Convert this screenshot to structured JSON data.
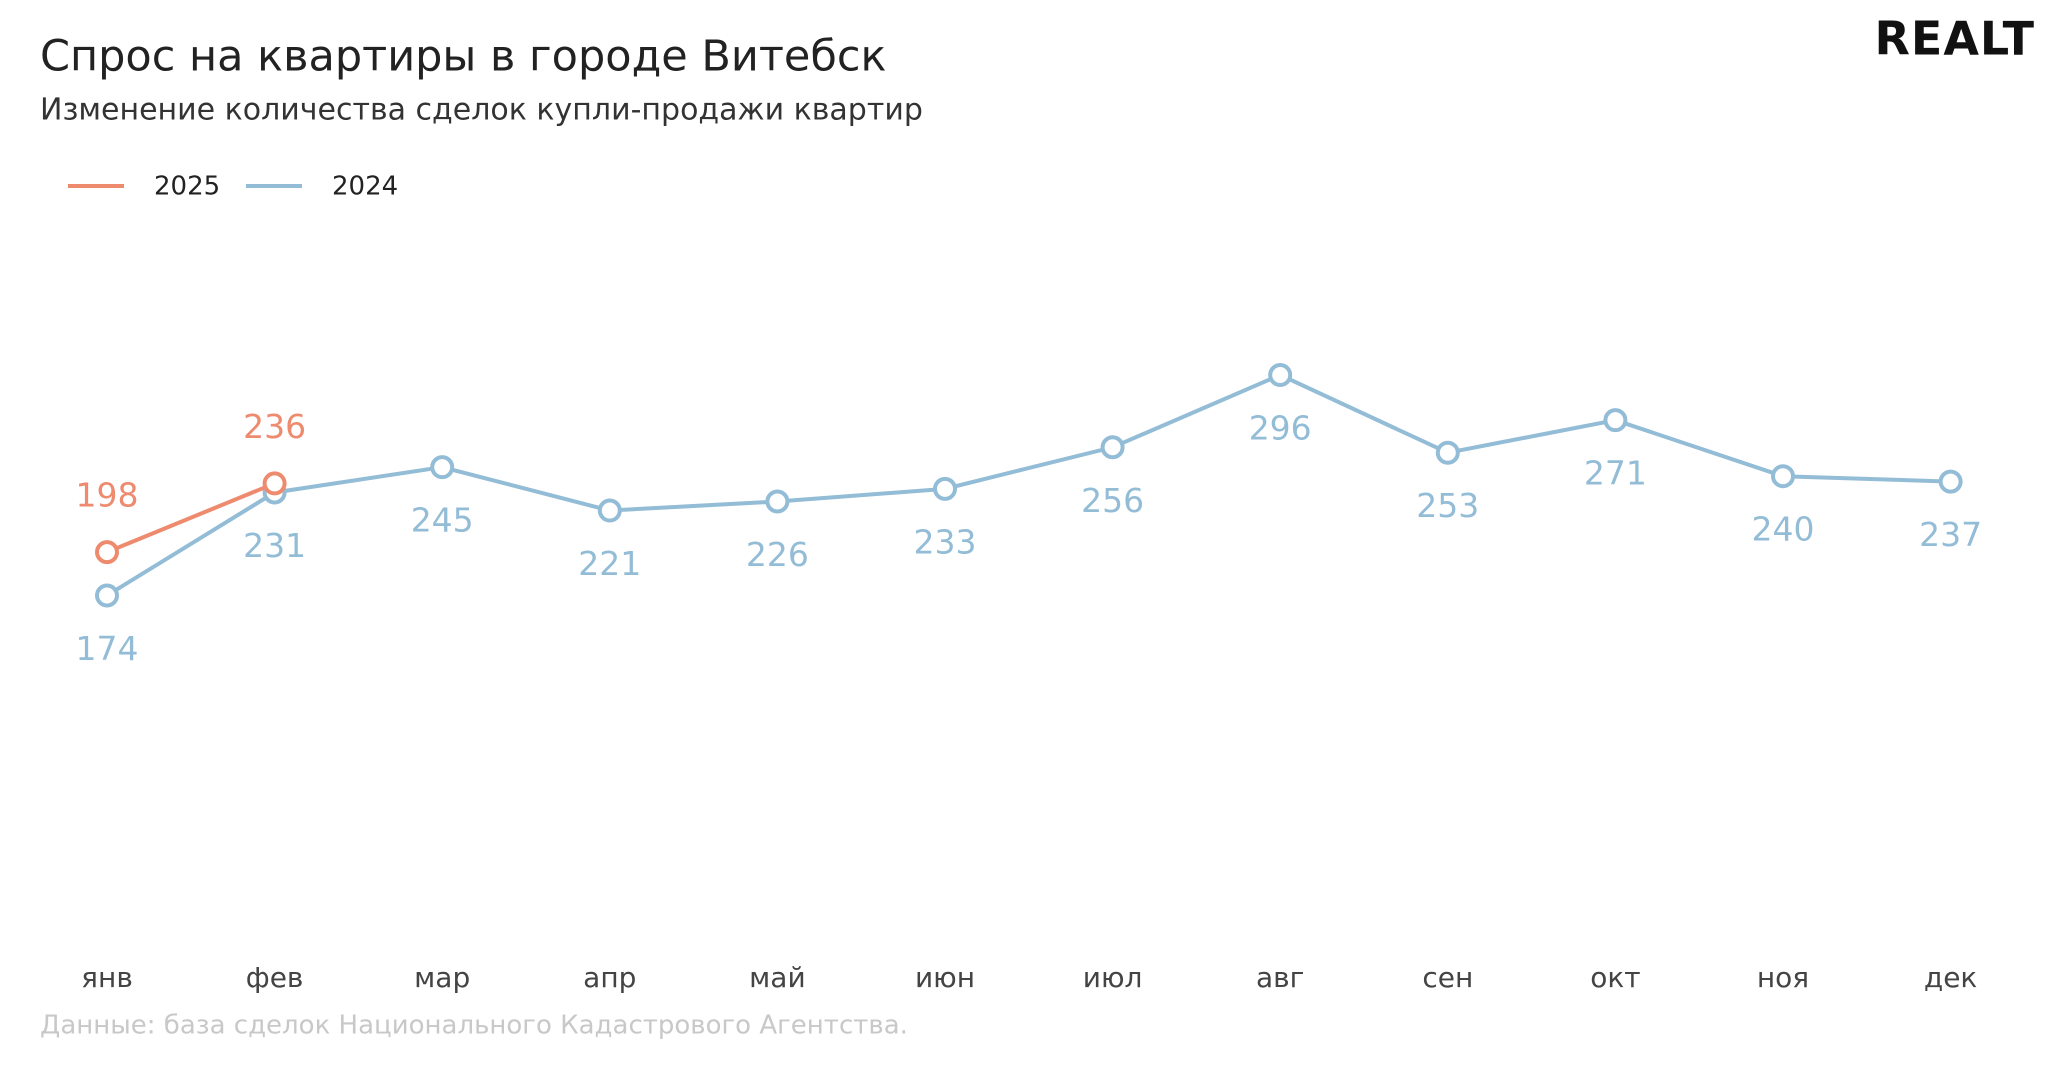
{
  "logo": "REALT",
  "chart_data": {
    "type": "line",
    "title": "Спрос на квартиры в городе Витебск",
    "subtitle": "Изменение количества сделок купли-продажи квартир",
    "source": "Данные: база сделок Национального Кадастрового Агентства.",
    "categories": [
      "янв",
      "фев",
      "мар",
      "апр",
      "май",
      "июн",
      "июл",
      "авг",
      "сен",
      "окт",
      "ноя",
      "дек"
    ],
    "ylim": [
      0,
      400
    ],
    "series": [
      {
        "name": "2025",
        "color": "#ee8a6e",
        "values": [
          198,
          236,
          null,
          null,
          null,
          null,
          null,
          null,
          null,
          null,
          null,
          null
        ]
      },
      {
        "name": "2024",
        "color": "#93bcd6",
        "values": [
          174,
          231,
          245,
          221,
          226,
          233,
          256,
          296,
          253,
          271,
          240,
          237
        ]
      }
    ]
  }
}
